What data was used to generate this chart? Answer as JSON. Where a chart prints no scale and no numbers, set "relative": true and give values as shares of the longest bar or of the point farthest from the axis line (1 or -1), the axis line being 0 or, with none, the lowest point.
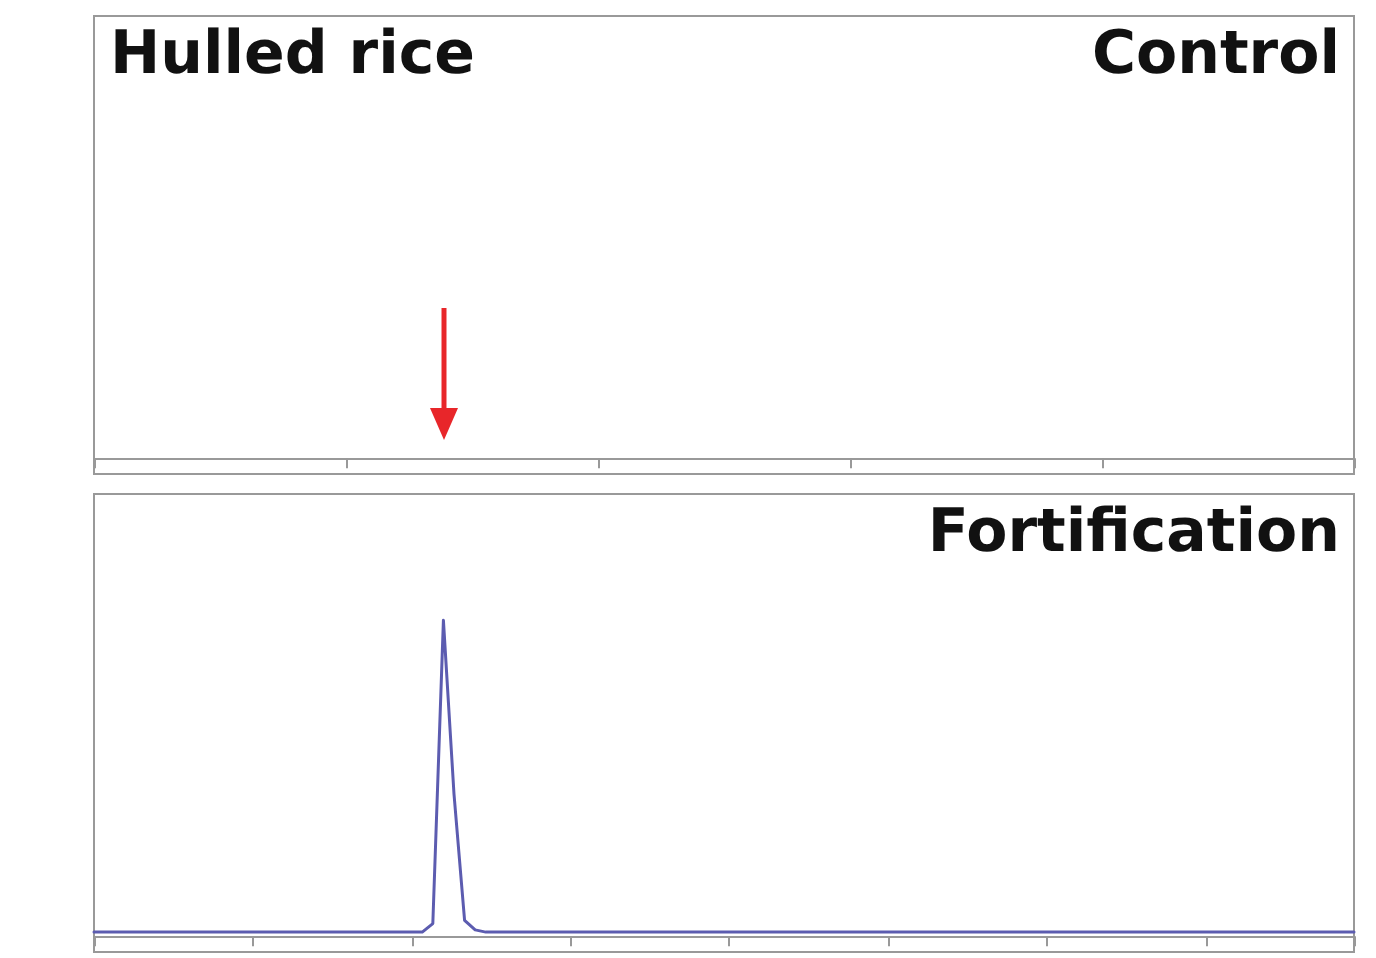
{
  "chart_data": [
    {
      "type": "other",
      "title": "Hulled rice",
      "annotations": [
        "Control"
      ]
    },
    {
      "type": "line",
      "annotations": [
        "Fortification"
      ],
      "relative": true,
      "categories": [
        null,
        null,
        null,
        null,
        null,
        null,
        null,
        null,
        null,
        null,
        null,
        null,
        null,
        null,
        null,
        null,
        null,
        null,
        null,
        null,
        null,
        null,
        null,
        null,
        null,
        null,
        null,
        null,
        null,
        null,
        null,
        null,
        null,
        null,
        null,
        null,
        null,
        null,
        null,
        null,
        null,
        null,
        null,
        null,
        null,
        null,
        null,
        null,
        null,
        null,
        null,
        null,
        null,
        null,
        null,
        null,
        null,
        null,
        null,
        null,
        null,
        null,
        null,
        null,
        null,
        null,
        null,
        null,
        null,
        null,
        null,
        null,
        null,
        null,
        null,
        null,
        null,
        null,
        null,
        null,
        null,
        null,
        null,
        null,
        null,
        null,
        null,
        null,
        null,
        null,
        null,
        null,
        null,
        null,
        null,
        null,
        null,
        null,
        null,
        null,
        null,
        null,
        null,
        null,
        null,
        null,
        null,
        null,
        null,
        null,
        null,
        null,
        null,
        null,
        null,
        null,
        null,
        null,
        null,
        null
      ],
      "series": [
        {
          "color": "#5c5cb0",
          "values": [
            0.013,
            0.013,
            0.013,
            0.013,
            0.013,
            0.013,
            0.013,
            0.013,
            0.013,
            0.013,
            0.013,
            0.013,
            0.013,
            0.013,
            0.013,
            0.013,
            0.013,
            0.013,
            0.013,
            0.013,
            0.013,
            0.013,
            0.013,
            0.013,
            0.013,
            0.013,
            0.013,
            0.013,
            0.013,
            0.013,
            0.013,
            0.013,
            0.04,
            1,
            0.45,
            0.05,
            0.02,
            0.013,
            0.013,
            0.013,
            0.013,
            0.013,
            0.013,
            0.013,
            0.013,
            0.013,
            0.013,
            0.013,
            0.013,
            0.013,
            0.013,
            0.013,
            0.013,
            0.013,
            0.013,
            0.013,
            0.013,
            0.013,
            0.013,
            0.013,
            0.013,
            0.013,
            0.013,
            0.013,
            0.013,
            0.013,
            0.013,
            0.013,
            0.013,
            0.013,
            0.013,
            0.013,
            0.013,
            0.013,
            0.013,
            0.013,
            0.013,
            0.013,
            0.013,
            0.013,
            0.013,
            0.013,
            0.013,
            0.013,
            0.013,
            0.013,
            0.013,
            0.013,
            0.013,
            0.013,
            0.013,
            0.013,
            0.013,
            0.013,
            0.013,
            0.013,
            0.013,
            0.013,
            0.013,
            0.013,
            0.013,
            0.013,
            0.013,
            0.013,
            0.013,
            0.013,
            0.013,
            0.013,
            0.013,
            0.013,
            0.013,
            0.013,
            0.013,
            0.013,
            0.013,
            0.013,
            0.013,
            0.013,
            0.013,
            0.013
          ]
        }
      ]
    }
  ]
}
